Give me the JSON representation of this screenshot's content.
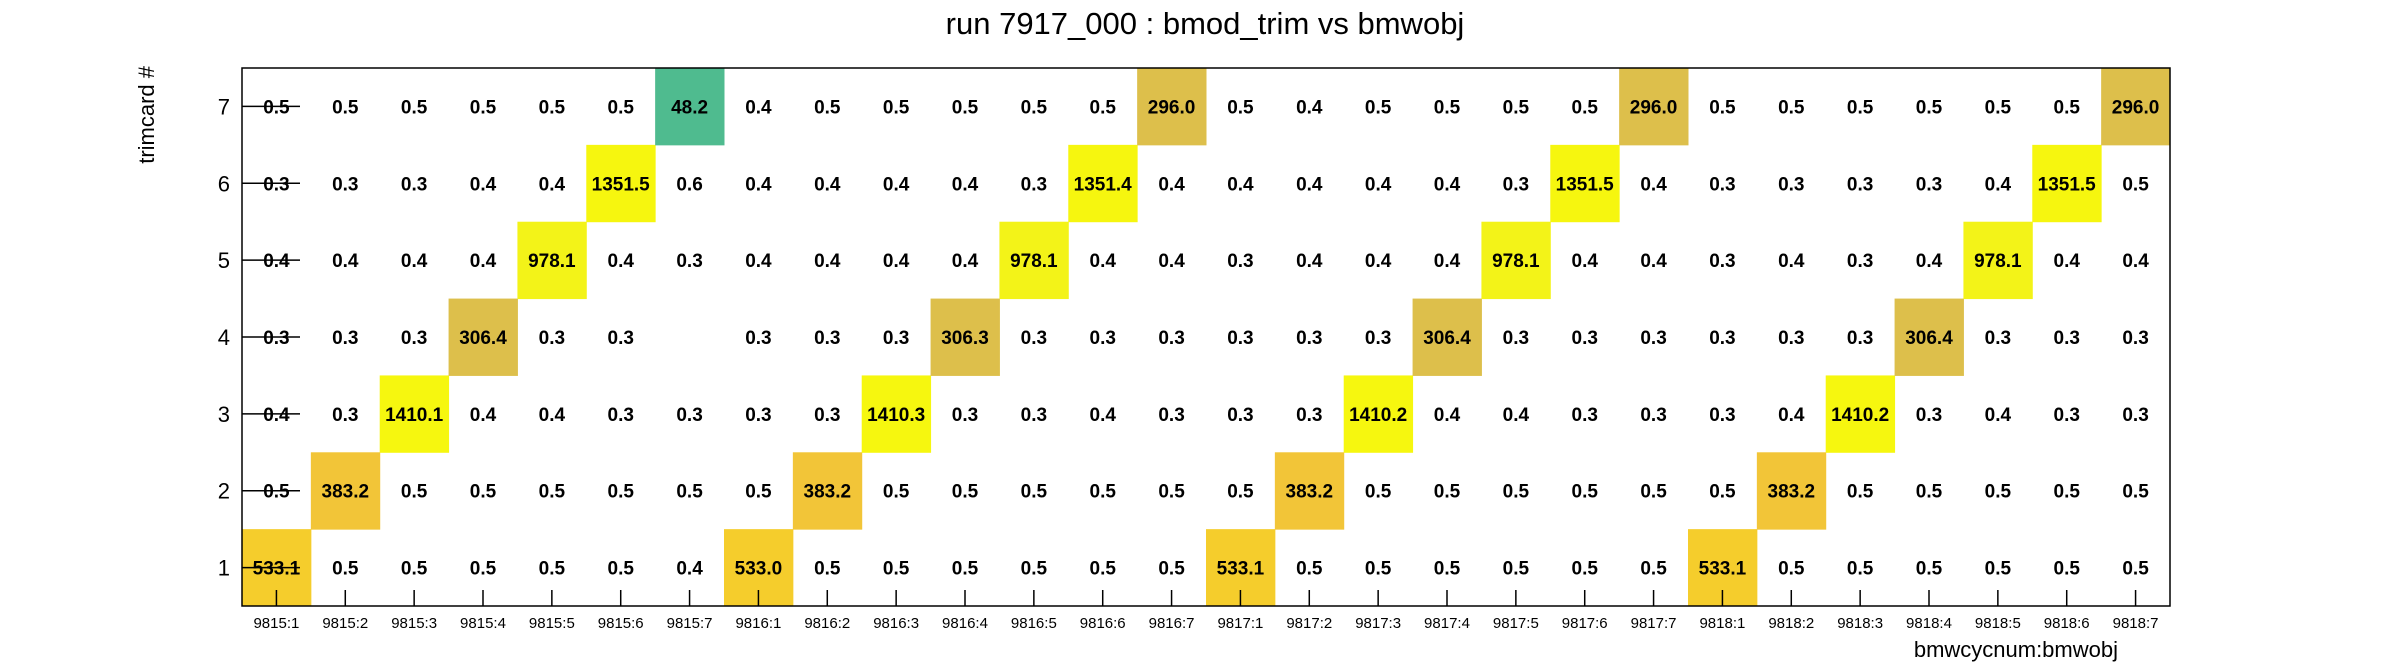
{
  "chart_data": {
    "type": "heatmap",
    "title": "run 7917_000 : bmod_trim vs bmwobj",
    "xlabel": "bmwcycnum:bmwobj",
    "ylabel": "trimcard #",
    "x_categories": [
      "9815:1",
      "9815:2",
      "9815:3",
      "9815:4",
      "9815:5",
      "9815:6",
      "9815:7",
      "9816:1",
      "9816:2",
      "9816:3",
      "9816:4",
      "9816:5",
      "9816:6",
      "9816:7",
      "9817:1",
      "9817:2",
      "9817:3",
      "9817:4",
      "9817:5",
      "9817:6",
      "9817:7",
      "9818:1",
      "9818:2",
      "9818:3",
      "9818:4",
      "9818:5",
      "9818:6",
      "9818:7"
    ],
    "y_categories": [
      "1",
      "2",
      "3",
      "4",
      "5",
      "6",
      "7"
    ],
    "grid": false,
    "values": [
      [
        "533.1",
        "0.5",
        "0.5",
        "0.5",
        "0.5",
        "0.5",
        "0.4",
        "533.0",
        "0.5",
        "0.5",
        "0.5",
        "0.5",
        "0.5",
        "0.5",
        "533.1",
        "0.5",
        "0.5",
        "0.5",
        "0.5",
        "0.5",
        "0.5",
        "533.1",
        "0.5",
        "0.5",
        "0.5",
        "0.5",
        "0.5",
        "0.5"
      ],
      [
        "0.5",
        "383.2",
        "0.5",
        "0.5",
        "0.5",
        "0.5",
        "0.5",
        "0.5",
        "383.2",
        "0.5",
        "0.5",
        "0.5",
        "0.5",
        "0.5",
        "0.5",
        "383.2",
        "0.5",
        "0.5",
        "0.5",
        "0.5",
        "0.5",
        "0.5",
        "383.2",
        "0.5",
        "0.5",
        "0.5",
        "0.5",
        "0.5"
      ],
      [
        "0.4",
        "0.3",
        "1410.1",
        "0.4",
        "0.4",
        "0.3",
        "0.3",
        "0.3",
        "0.3",
        "1410.3",
        "0.3",
        "0.3",
        "0.4",
        "0.3",
        "0.3",
        "0.3",
        "1410.2",
        "0.4",
        "0.4",
        "0.3",
        "0.3",
        "0.3",
        "0.4",
        "1410.2",
        "0.3",
        "0.4",
        "0.3",
        "0.3"
      ],
      [
        "0.3",
        "0.3",
        "0.3",
        "306.4",
        "0.3",
        "0.3",
        "",
        "0.3",
        "0.3",
        "0.3",
        "306.3",
        "0.3",
        "0.3",
        "0.3",
        "0.3",
        "0.3",
        "0.3",
        "306.4",
        "0.3",
        "0.3",
        "0.3",
        "0.3",
        "0.3",
        "0.3",
        "306.4",
        "0.3",
        "0.3",
        "0.3"
      ],
      [
        "0.4",
        "0.4",
        "0.4",
        "0.4",
        "978.1",
        "0.4",
        "0.3",
        "0.4",
        "0.4",
        "0.4",
        "0.4",
        "978.1",
        "0.4",
        "0.4",
        "0.3",
        "0.4",
        "0.4",
        "0.4",
        "978.1",
        "0.4",
        "0.4",
        "0.3",
        "0.4",
        "0.3",
        "0.4",
        "978.1",
        "0.4",
        "0.4"
      ],
      [
        "0.3",
        "0.3",
        "0.3",
        "0.4",
        "0.4",
        "1351.5",
        "0.6",
        "0.4",
        "0.4",
        "0.4",
        "0.4",
        "0.3",
        "1351.4",
        "0.4",
        "0.4",
        "0.4",
        "0.4",
        "0.4",
        "0.3",
        "1351.5",
        "0.4",
        "0.3",
        "0.3",
        "0.3",
        "0.3",
        "0.4",
        "1351.5",
        "0.5"
      ],
      [
        "0.5",
        "0.5",
        "0.5",
        "0.5",
        "0.5",
        "0.5",
        "48.2",
        "0.4",
        "0.5",
        "0.5",
        "0.5",
        "0.5",
        "0.5",
        "296.0",
        "0.5",
        "0.4",
        "0.5",
        "0.5",
        "0.5",
        "0.5",
        "296.0",
        "0.5",
        "0.5",
        "0.5",
        "0.5",
        "0.5",
        "0.5",
        "296.0"
      ]
    ],
    "colors": {
      "c1410": "#f6f70f",
      "c1351": "#f6f60f",
      "c978": "#f3f318",
      "c533": "#f5cd2c",
      "c383": "#f2c538",
      "c306": "#ddbf4b",
      "c296": "#ddbf4b",
      "c48": "#4fbb8f",
      "frame": "#000000",
      "background": "#ffffff"
    }
  }
}
